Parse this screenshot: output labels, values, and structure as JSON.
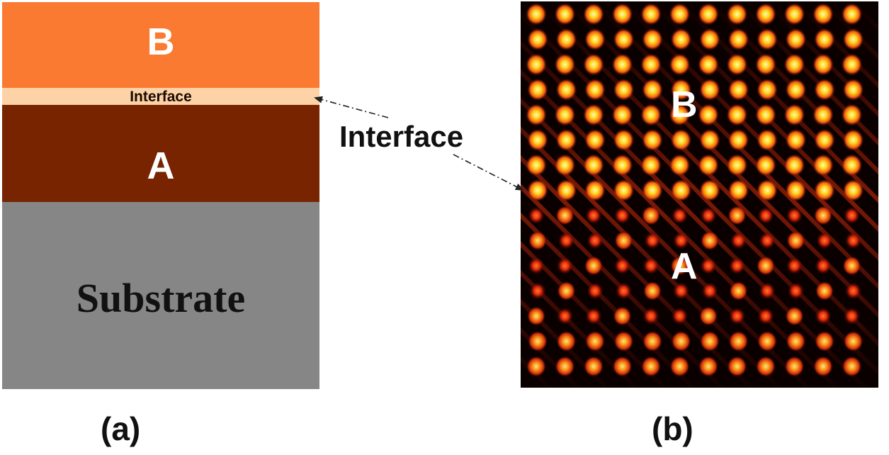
{
  "panel_a": {
    "layers": {
      "b": "B",
      "interface": "Interface",
      "a": "A",
      "substrate": "Substrate"
    },
    "caption": "(a)"
  },
  "panel_b": {
    "labels": {
      "b": "B",
      "a": "A"
    },
    "caption": "(b)"
  },
  "callout": {
    "label": "Interface"
  },
  "colors": {
    "layer_b": "#fb7a32",
    "interface": "#fcd2a6",
    "layer_a": "#782400",
    "substrate": "#868686",
    "atom_bright": "#ffe94a",
    "atom_dim": "#e0200a"
  }
}
